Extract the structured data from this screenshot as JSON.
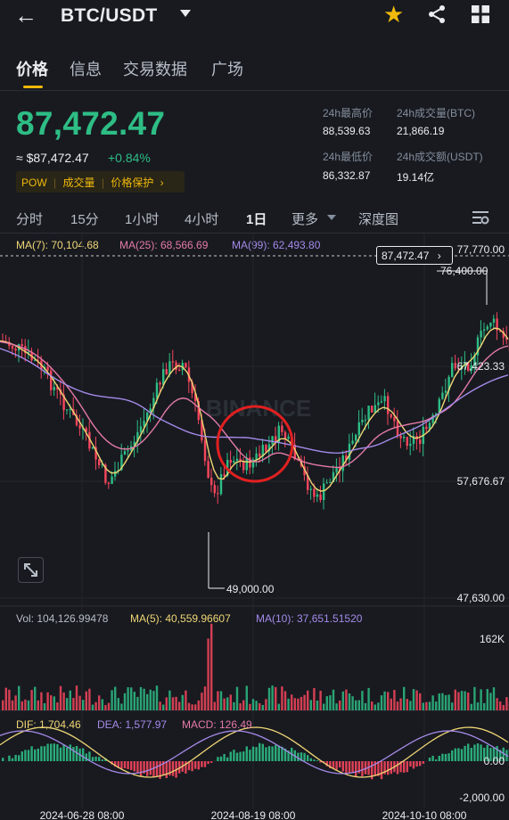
{
  "header": {
    "back_icon": "back-arrow-icon",
    "pair": "BTC/USDT",
    "star_icon": "star-icon",
    "share_icon": "share-icon",
    "grid_icon": "grid-icon"
  },
  "tabs": [
    {
      "label": "价格",
      "active": true
    },
    {
      "label": "信息"
    },
    {
      "label": "交易数据"
    },
    {
      "label": "广场"
    }
  ],
  "price": {
    "last": "87,472.47",
    "usd": "≈ $87,472.47",
    "change": "+0.84%",
    "badge": [
      "POW",
      "成交量",
      "价格保护"
    ],
    "badge_arrow": "›"
  },
  "stats": {
    "high_label": "24h最高价",
    "high": "88,539.63",
    "vol_btc_label": "24h成交量(BTC)",
    "vol_btc": "21,866.19",
    "low_label": "24h最低价",
    "low": "86,332.87",
    "vol_usdt_label": "24h成交额(USDT)",
    "vol_usdt": "19.14亿"
  },
  "intervals": [
    "分时",
    "15分",
    "1小时",
    "4小时",
    "1日",
    "更多",
    "深度图"
  ],
  "active_interval": "1日",
  "ma": {
    "ma7": "MA(7): 70,104.68",
    "ma25": "MA(25): 68,566.69",
    "ma99": "MA(99): 62,493.80"
  },
  "chart": {
    "current_tag": "87,472.47",
    "current_tag_arrow": "›",
    "y_labels": [
      "77,770.00",
      "76,400.00",
      "67,423.33",
      "57,676.67",
      "47,630.00"
    ],
    "high_marker": "76,400.00",
    "low_marker": "49,000.00",
    "watermark": "BINANCE",
    "expand_icon": "expand-icon"
  },
  "volume": {
    "vol": "Vol: 104,126.99478",
    "ma5": "MA(5): 40,559.96607",
    "ma10": "MA(10): 37,651.51520",
    "y_label": "162K"
  },
  "macd": {
    "dif": "DIF: 1,704.46",
    "dea": "DEA: 1,577.97",
    "macd": "MACD: 126.49",
    "y_top": "0.00",
    "y_bottom": "-2,000.00"
  },
  "dates": [
    "2024-06-28 08:00",
    "2024-08-19 08:00",
    "2024-10-10 08:00"
  ],
  "colors": {
    "up": "#2ebd85",
    "down": "#f6465d",
    "accent": "#f0b90b",
    "ma7": "#f0d675",
    "ma25": "#e57aa8",
    "ma99": "#a58ae8"
  }
}
